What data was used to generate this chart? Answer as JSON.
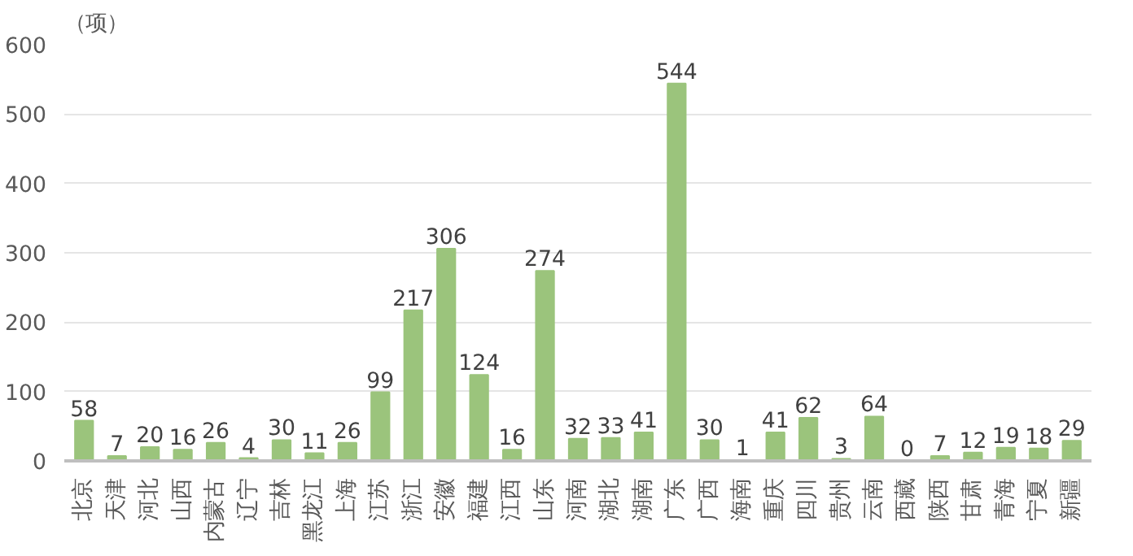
{
  "chart_data": {
    "type": "bar",
    "ylabel": "（项）",
    "categories": [
      "北京",
      "天津",
      "河北",
      "山西",
      "内蒙古",
      "辽宁",
      "吉林",
      "黑龙江",
      "上海",
      "江苏",
      "浙江",
      "安徽",
      "福建",
      "江西",
      "山东",
      "河南",
      "湖北",
      "湖南",
      "广东",
      "广西",
      "海南",
      "重庆",
      "四川",
      "贵州",
      "云南",
      "西藏",
      "陕西",
      "甘肃",
      "青海",
      "宁夏",
      "新疆"
    ],
    "values": [
      58,
      7,
      20,
      16,
      26,
      4,
      30,
      11,
      26,
      99,
      217,
      306,
      124,
      16,
      274,
      32,
      33,
      41,
      544,
      30,
      1,
      41,
      62,
      3,
      64,
      0,
      7,
      12,
      19,
      18,
      29
    ],
    "color": "#9bc47c",
    "ylim": [
      0,
      600
    ],
    "yticks": [
      0,
      100,
      200,
      300,
      400,
      500,
      600
    ],
    "grid": "y",
    "data_labels": true
  }
}
